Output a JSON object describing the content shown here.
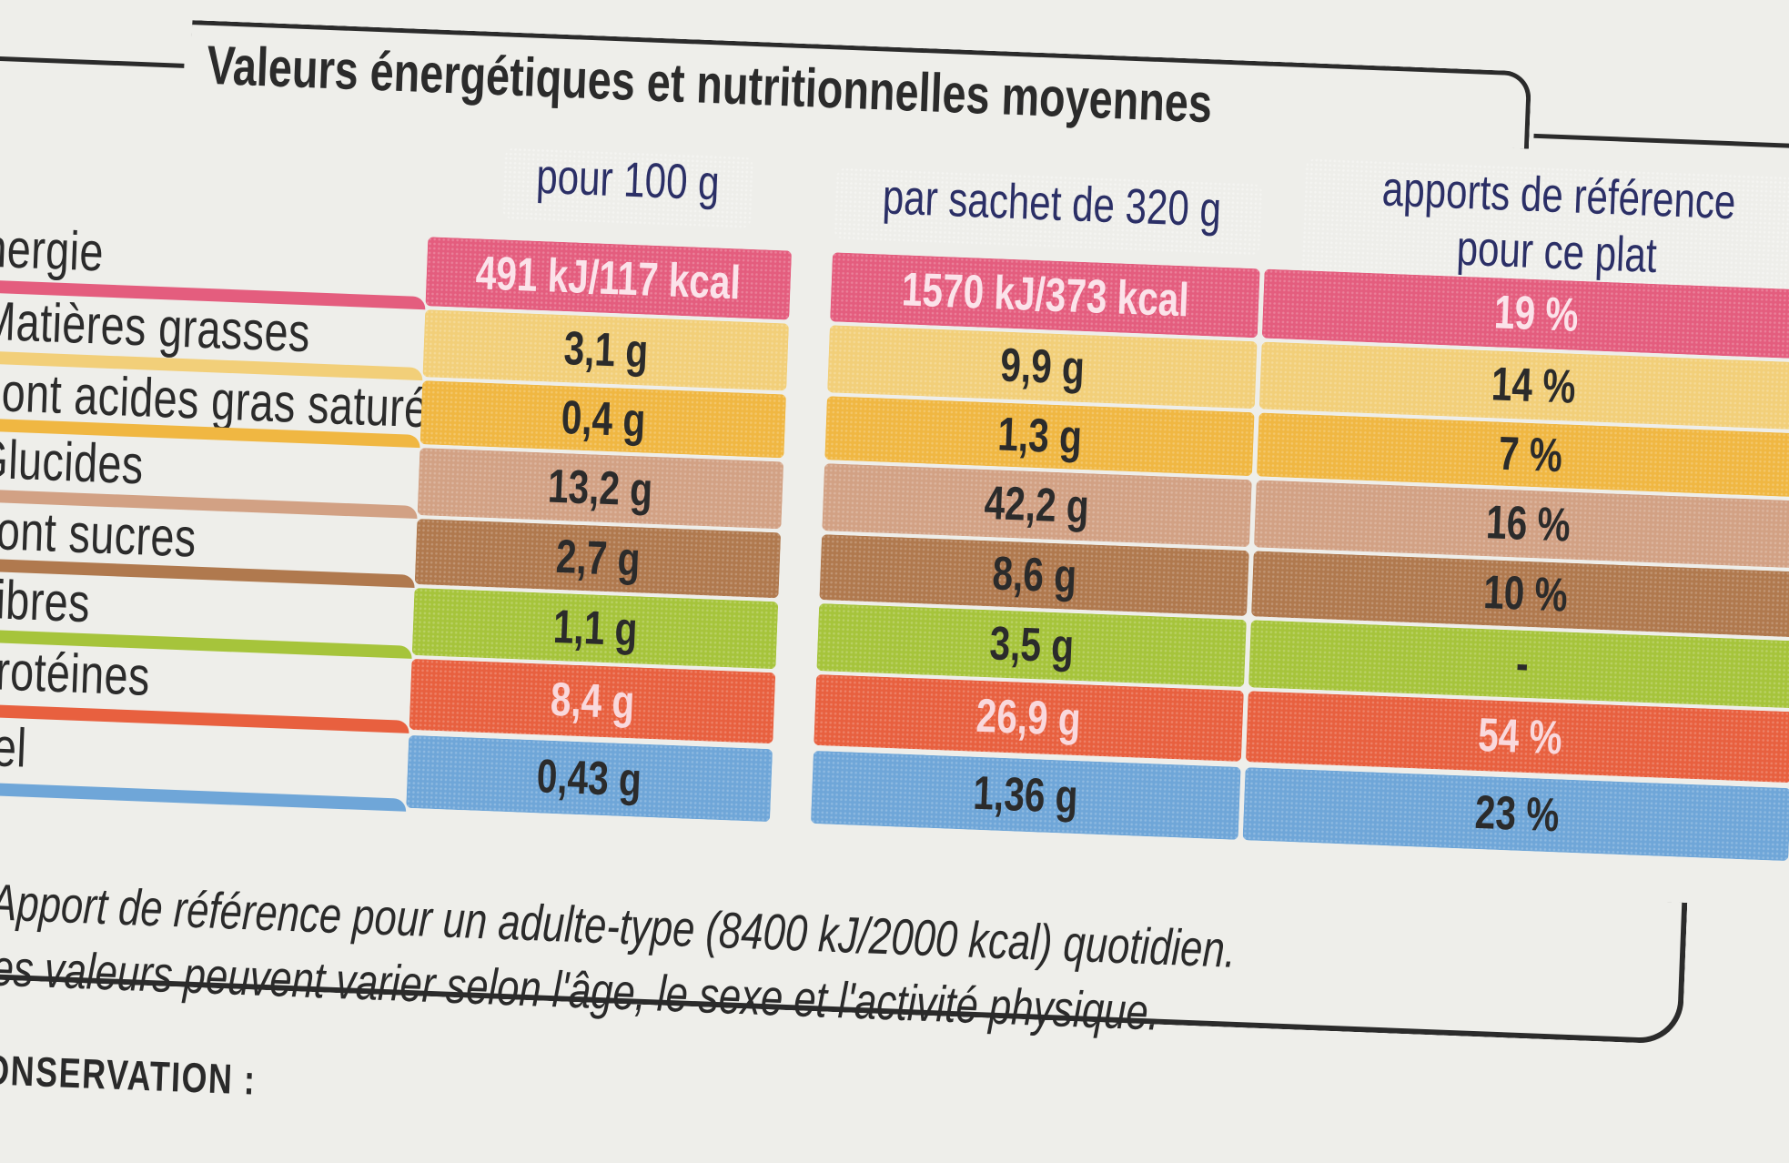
{
  "title": "Valeurs énergétiques et nutritionnelles moyennes",
  "columns": [
    {
      "label": "pour 100 g",
      "color": "#6f83c6"
    },
    {
      "label": "par sachet de 320 g",
      "color": "#6f83c6"
    },
    {
      "label_line1": "apports de référence",
      "label_line2": "pour ce plat",
      "color": "#6f83c6"
    }
  ],
  "rows": [
    {
      "label": "nergie",
      "v100": "491 kJ/117 kcal",
      "vsachet": "1570 kJ/373 kcal",
      "ref": "19 %",
      "color": "#e45d7e",
      "text_color": "#fbe3ea"
    },
    {
      "label": "Matières grasses",
      "v100": "3,1 g",
      "vsachet": "9,9 g",
      "ref": "14 %",
      "color": "#f2cf79",
      "text_color": "#2b2b2b"
    },
    {
      "label": "dont acides gras saturés",
      "v100": "0,4 g",
      "vsachet": "1,3 g",
      "ref": "7 %",
      "color": "#f0b742",
      "text_color": "#2b2b2b"
    },
    {
      "label": "Glucides",
      "v100": "13,2 g",
      "vsachet": "42,2 g",
      "ref": "16 %",
      "color": "#d2a184",
      "text_color": "#2b2b2b"
    },
    {
      "label": "dont sucres",
      "v100": "2,7 g",
      "vsachet": "8,6 g",
      "ref": "10 %",
      "color": "#b0794e",
      "text_color": "#2b2b2b"
    },
    {
      "label": "Fibres",
      "v100": "1,1 g",
      "vsachet": "3,5 g",
      "ref": "-",
      "color": "#a6c43b",
      "text_color": "#2b2b2b"
    },
    {
      "label": "Protéines",
      "v100": "8,4 g",
      "vsachet": "26,9 g",
      "ref": "54 %",
      "color": "#e8603f",
      "text_color": "#f9d9dd"
    },
    {
      "label": "Sel",
      "v100": "0,43 g",
      "vsachet": "1,36 g",
      "ref": "23 %",
      "color": "#6fa6d8",
      "text_color": "#2b2b2b"
    }
  ],
  "footnote_line1": "* Apport de référence pour un adulte-type (8400 kJ/2000 kcal) quotidien.",
  "footnote_line2": "Ces valeurs peuvent varier selon l'âge, le sexe et l'activité physique.",
  "conservation": "CONSERVATION :"
}
